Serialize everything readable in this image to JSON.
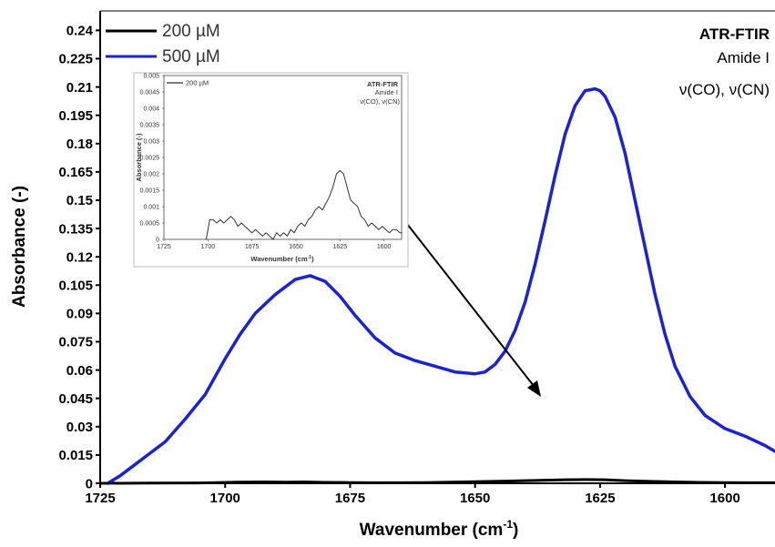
{
  "chart_data": [
    {
      "type": "line",
      "xlabel": "Wavenumber (cm",
      "xlabel_sup": "-1",
      "xlabel_end": ")",
      "ylabel": "Absorbance (-)",
      "xlim": [
        1725,
        1590
      ],
      "ylim": [
        0,
        0.245
      ],
      "xticks": [
        1725,
        1700,
        1675,
        1650,
        1625,
        1600
      ],
      "yticks": [
        "0",
        "0.015",
        "0.03",
        "0.045",
        "0.06",
        "0.075",
        "0.09",
        "0.105",
        "0.12",
        "0.135",
        "0.15",
        "0.165",
        "0.18",
        "0.195",
        "0.21",
        "0.225",
        "0.24"
      ],
      "legend_position": "top-left",
      "annotation": [
        "ATR-FTIR",
        "Amide I",
        "ν(CO), ν(CN)"
      ],
      "series": [
        {
          "name": "200 µM",
          "color": "#000000",
          "x": [
            1725,
            1715,
            1705,
            1698,
            1692,
            1688,
            1684,
            1680,
            1675,
            1670,
            1665,
            1660,
            1655,
            1650,
            1645,
            1640,
            1635,
            1632,
            1628,
            1624,
            1620,
            1615,
            1610,
            1605,
            1600,
            1595,
            1590
          ],
          "y": [
            0.0,
            0.0001,
            0.0002,
            0.0006,
            0.0007,
            0.0006,
            0.0007,
            0.0005,
            0.0004,
            0.0003,
            0.0003,
            0.0004,
            0.0006,
            0.0008,
            0.0011,
            0.0014,
            0.0017,
            0.0019,
            0.002,
            0.0019,
            0.0014,
            0.001,
            0.0007,
            0.0005,
            0.0004,
            0.0003,
            0.0003
          ]
        },
        {
          "name": "500 µM",
          "color": "#1a22d6",
          "x": [
            1723.5,
            1721,
            1718,
            1716,
            1712,
            1708,
            1704,
            1700,
            1697,
            1694,
            1690,
            1686,
            1683,
            1680,
            1677,
            1674,
            1670,
            1666,
            1662,
            1658,
            1654,
            1650,
            1648,
            1646,
            1644,
            1642,
            1640,
            1638,
            1636,
            1634,
            1632,
            1630,
            1628,
            1626,
            1625,
            1624,
            1622,
            1620,
            1618,
            1616,
            1614,
            1612,
            1610,
            1607,
            1604,
            1600,
            1596,
            1592,
            1590
          ],
          "y": [
            0.0,
            0.004,
            0.01,
            0.014,
            0.022,
            0.034,
            0.047,
            0.066,
            0.079,
            0.09,
            0.1,
            0.108,
            0.11,
            0.107,
            0.099,
            0.089,
            0.077,
            0.069,
            0.065,
            0.062,
            0.059,
            0.058,
            0.059,
            0.063,
            0.07,
            0.081,
            0.096,
            0.116,
            0.139,
            0.163,
            0.185,
            0.2,
            0.208,
            0.209,
            0.208,
            0.205,
            0.194,
            0.175,
            0.15,
            0.125,
            0.1,
            0.079,
            0.062,
            0.046,
            0.036,
            0.029,
            0.025,
            0.02,
            0.017
          ]
        }
      ]
    },
    {
      "type": "line",
      "inset": true,
      "xlabel": "Wavenumber (cm",
      "xlabel_sup": "-1",
      "xlabel_end": ")",
      "ylabel": "Absorbance (-)",
      "xlim": [
        1725,
        1590
      ],
      "ylim": [
        0,
        0.005
      ],
      "xticks": [
        1725,
        1700,
        1675,
        1650,
        1625,
        1600
      ],
      "yticks": [
        "0",
        "0.0005",
        "0.001",
        "0.0015",
        "0.002",
        "0.0025",
        "0.003",
        "0.0035",
        "0.004",
        "0.0045",
        "0.005"
      ],
      "annotation": [
        "ATR-FTIR",
        "Amide I",
        "ν(CO), ν(CN)"
      ],
      "series": [
        {
          "name": "200 µM",
          "color": "#333333",
          "x": [
            1701,
            1699,
            1697,
            1695,
            1693,
            1691,
            1689,
            1687,
            1685,
            1683,
            1681,
            1679,
            1677,
            1675,
            1673,
            1671,
            1669,
            1667,
            1665,
            1663,
            1661,
            1659,
            1657,
            1655,
            1653,
            1651,
            1649,
            1647,
            1645,
            1643,
            1641,
            1639,
            1637,
            1635,
            1633,
            1631,
            1629,
            1627,
            1625,
            1623,
            1621,
            1619,
            1617,
            1615,
            1613,
            1611,
            1609,
            1607,
            1605,
            1603,
            1601,
            1599,
            1597,
            1595,
            1593,
            1591,
            1590
          ],
          "y": [
            0.0,
            0.0006,
            0.0006,
            0.0005,
            0.0006,
            0.0005,
            0.0006,
            0.0007,
            0.0006,
            0.0004,
            0.0005,
            0.0004,
            0.0003,
            0.0002,
            0.0003,
            0.0002,
            0.0001,
            0.0002,
            0.0001,
            0.0,
            0.0002,
            0.0001,
            0.0002,
            0.0001,
            0.0003,
            0.0002,
            0.0004,
            0.0005,
            0.0004,
            0.0006,
            0.0007,
            0.0009,
            0.001,
            0.0009,
            0.0011,
            0.0013,
            0.0016,
            0.002,
            0.0021,
            0.002,
            0.0016,
            0.0012,
            0.0011,
            0.001,
            0.0007,
            0.0006,
            0.0004,
            0.0005,
            0.0004,
            0.0003,
            0.0004,
            0.0003,
            0.0002,
            0.0003,
            0.0003,
            0.0002,
            0.0002
          ]
        }
      ]
    }
  ]
}
